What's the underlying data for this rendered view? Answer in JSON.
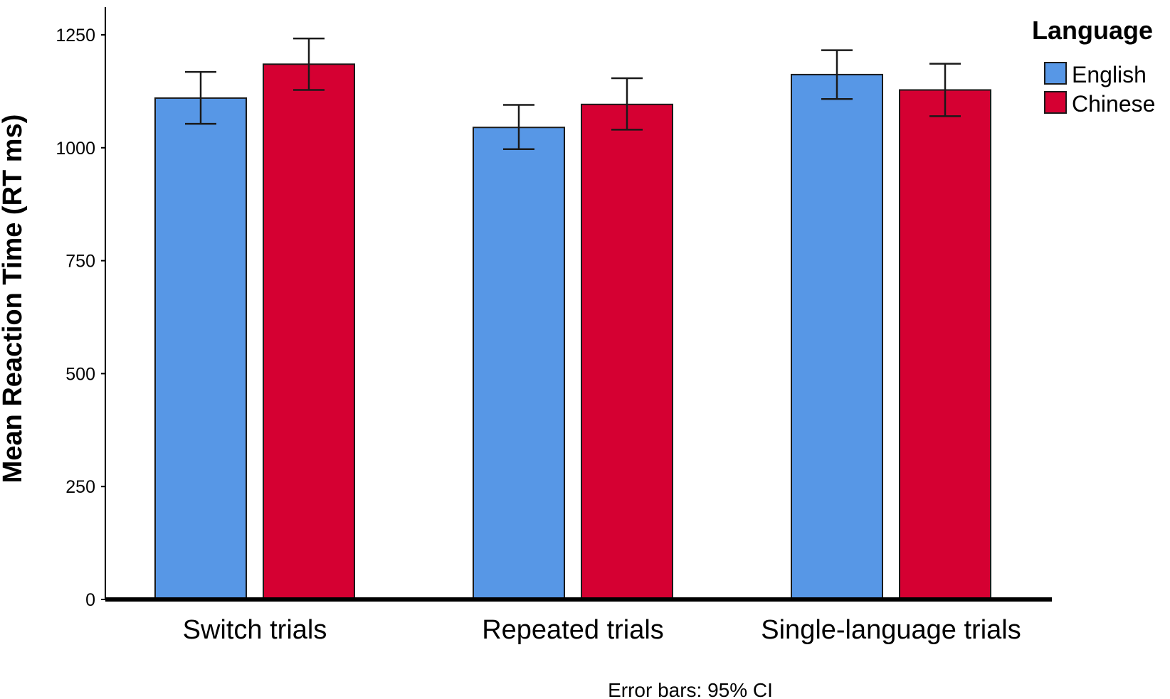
{
  "chart_data": {
    "type": "bar",
    "ylabel": "Mean Reaction Time (RT ms)",
    "ylim": [
      0,
      1300
    ],
    "yticks": [
      0,
      250,
      500,
      750,
      1000,
      1250
    ],
    "categories": [
      "Switch trials",
      "Repeated trials",
      "Single-language trials"
    ],
    "series": [
      {
        "name": "English",
        "color": "#5797e6",
        "values": [
          1110,
          1045,
          1162
        ],
        "ci_low": [
          1053,
          997,
          1108
        ],
        "ci_high": [
          1168,
          1095,
          1216
        ]
      },
      {
        "name": "Chinese",
        "color": "#d50032",
        "values": [
          1185,
          1096,
          1128
        ],
        "ci_low": [
          1128,
          1040,
          1070
        ],
        "ci_high": [
          1242,
          1154,
          1186
        ]
      }
    ],
    "legend": {
      "title": "Language",
      "position": "top-right"
    },
    "grid": false,
    "note": "Error bars: 95% CI"
  }
}
